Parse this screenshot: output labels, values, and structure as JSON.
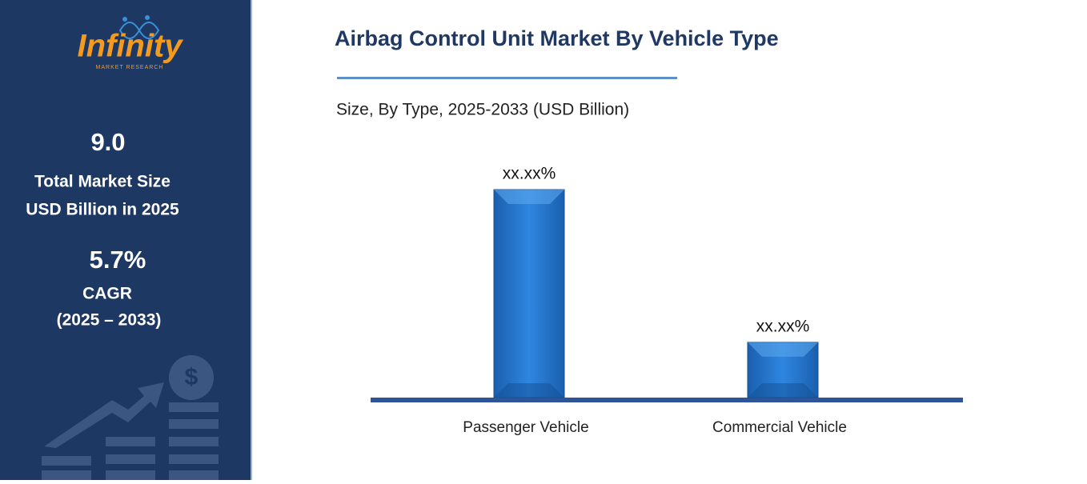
{
  "sidebar": {
    "logo": "Infinity",
    "logo_sub": "MARKET RESEARCH",
    "market_size": "9.0",
    "market_size_label_1": "Total Market Size",
    "market_size_label_2": "USD Billion in 2025",
    "cagr": "5.7%",
    "cagr_label": "CAGR",
    "cagr_period": "(2025 – 2033)"
  },
  "chart_data": {
    "type": "bar",
    "title": "Airbag Control Unit Market By Vehicle Type",
    "subtitle": "Size, By Type, 2025-2033 (USD Billion)",
    "categories": [
      "Passenger Vehicle",
      "Commercial Vehicle"
    ],
    "values": [
      79,
      21
    ],
    "value_labels": [
      "xx.xx%",
      "xx.xx%"
    ],
    "color": "#1f6fc8"
  }
}
